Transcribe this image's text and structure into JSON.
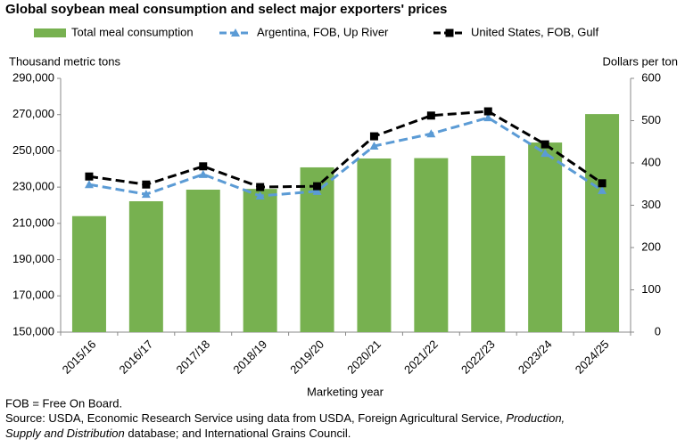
{
  "chart_data": {
    "type": "combo",
    "title": "Global soybean meal consumption and select major exporters' prices",
    "y_label": "Thousand metric tons",
    "y2_label": "Dollars per ton",
    "x_label": "Marketing year",
    "categories": [
      "2015/16",
      "2016/17",
      "2017/18",
      "2018/19",
      "2019/20",
      "2020/21",
      "2021/22",
      "2022/23",
      "2023/24",
      "2024/25"
    ],
    "series": [
      {
        "name": "Total meal consumption",
        "type": "bar",
        "color": "#77b150",
        "values": [
          214000,
          222200,
          228600,
          229000,
          240900,
          245800,
          246000,
          247300,
          254600,
          270300
        ]
      },
      {
        "name": "Argentina, FOB, Up River",
        "type": "line",
        "axis": "y2",
        "marker": "triangle",
        "color": "#5b9bd5",
        "values": [
          349,
          326,
          373,
          322,
          333,
          440,
          469,
          507,
          423,
          335
        ]
      },
      {
        "name": "United States, FOB, Gulf",
        "type": "line",
        "axis": "y2",
        "marker": "square",
        "color": "#000000",
        "values": [
          368,
          349,
          392,
          343,
          345,
          463,
          512,
          522,
          444,
          352
        ]
      }
    ],
    "ylim": [
      150000,
      290000
    ],
    "yticks": [
      {
        "value": 150000,
        "label": "150,000"
      },
      {
        "value": 170000,
        "label": "170,000"
      },
      {
        "value": 190000,
        "label": "190,000"
      },
      {
        "value": 210000,
        "label": "210,000"
      },
      {
        "value": 230000,
        "label": "230,000"
      },
      {
        "value": 250000,
        "label": "250,000"
      },
      {
        "value": 270000,
        "label": "270,000"
      },
      {
        "value": 290000,
        "label": "290,000"
      }
    ],
    "y2lim": [
      0,
      600
    ],
    "y2ticks": [
      0,
      100,
      200,
      300,
      400,
      500,
      600
    ],
    "footnote": "FOB = Free On Board.",
    "source_lines": [
      [
        {
          "text": "Source: USDA, Economic Research Service using data from USDA, Foreign Agricultural Service, ",
          "italic": false
        },
        {
          "text": "Production,",
          "italic": true
        }
      ],
      [
        {
          "text": "Supply and Distribution",
          "italic": true
        },
        {
          "text": " database; and International Grains Council.",
          "italic": false
        }
      ]
    ]
  }
}
